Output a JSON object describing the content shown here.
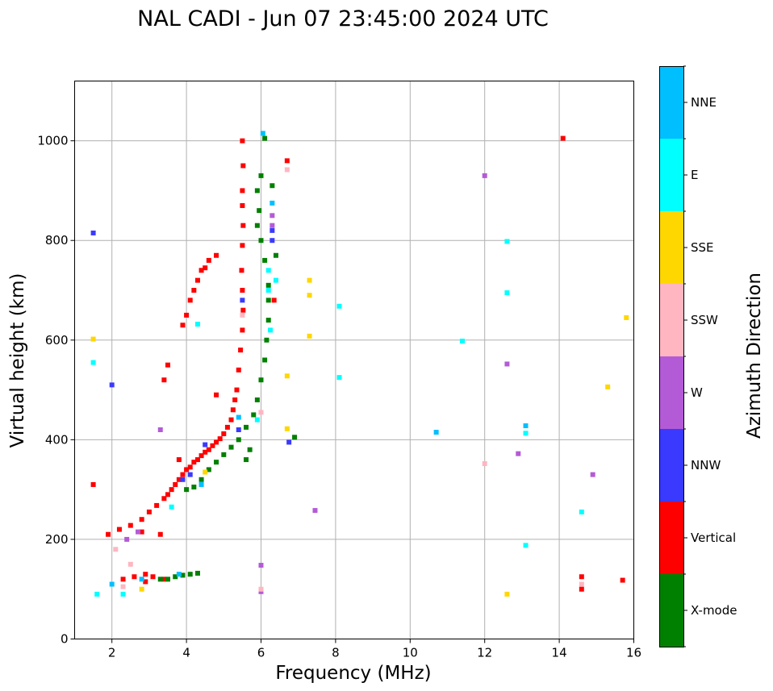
{
  "chart_data": {
    "type": "scatter",
    "title": "NAL CADI - Jun 07 23:45:00 2024 UTC",
    "xlabel": "Frequency (MHz)",
    "ylabel": "Virtual height (km)",
    "xlim": [
      1,
      16
    ],
    "ylim": [
      0,
      1120
    ],
    "xticks": [
      2,
      4,
      6,
      8,
      10,
      12,
      14,
      16
    ],
    "yticks": [
      0,
      200,
      400,
      600,
      800,
      1000
    ],
    "grid": true,
    "colorbar": {
      "label": "Azimuth Direction",
      "categories": [
        "X-mode",
        "Vertical",
        "NNW",
        "W",
        "SSW",
        "SSE",
        "E",
        "NNE"
      ],
      "colors": [
        "#008000",
        "#ff0000",
        "#3a3aff",
        "#b35bd6",
        "#ffb6c1",
        "#ffd700",
        "#00ffff",
        "#00bfff"
      ]
    },
    "series": [
      {
        "name": "Vertical",
        "points": [
          [
            1.5,
            310
          ],
          [
            1.9,
            210
          ],
          [
            2.2,
            220
          ],
          [
            2.5,
            228
          ],
          [
            2.8,
            240
          ],
          [
            3.0,
            255
          ],
          [
            3.2,
            268
          ],
          [
            3.4,
            282
          ],
          [
            3.5,
            290
          ],
          [
            3.6,
            300
          ],
          [
            3.7,
            310
          ],
          [
            3.8,
            320
          ],
          [
            3.9,
            330
          ],
          [
            4.0,
            340
          ],
          [
            4.1,
            345
          ],
          [
            4.2,
            355
          ],
          [
            4.3,
            360
          ],
          [
            4.4,
            368
          ],
          [
            4.5,
            375
          ],
          [
            4.6,
            380
          ],
          [
            4.7,
            388
          ],
          [
            4.8,
            395
          ],
          [
            4.9,
            402
          ],
          [
            5.0,
            412
          ],
          [
            5.1,
            425
          ],
          [
            5.2,
            440
          ],
          [
            5.25,
            460
          ],
          [
            5.3,
            480
          ],
          [
            5.35,
            500
          ],
          [
            5.4,
            540
          ],
          [
            5.45,
            580
          ],
          [
            5.5,
            620
          ],
          [
            5.52,
            660
          ],
          [
            5.5,
            700
          ],
          [
            5.48,
            740
          ],
          [
            5.5,
            790
          ],
          [
            5.52,
            830
          ],
          [
            5.5,
            870
          ],
          [
            5.5,
            900
          ],
          [
            5.52,
            950
          ],
          [
            5.5,
            1000
          ],
          [
            3.9,
            630
          ],
          [
            4.0,
            650
          ],
          [
            4.1,
            680
          ],
          [
            4.2,
            700
          ],
          [
            4.3,
            720
          ],
          [
            4.4,
            740
          ],
          [
            4.5,
            745
          ],
          [
            4.6,
            760
          ],
          [
            4.8,
            770
          ],
          [
            3.4,
            520
          ],
          [
            3.5,
            550
          ],
          [
            4.8,
            490
          ],
          [
            3.8,
            360
          ],
          [
            3.3,
            210
          ],
          [
            2.8,
            215
          ],
          [
            6.7,
            960
          ],
          [
            6.35,
            680
          ],
          [
            14.1,
            1005
          ],
          [
            15.7,
            118
          ],
          [
            14.6,
            100
          ],
          [
            14.6,
            125
          ],
          [
            2.3,
            120
          ],
          [
            2.6,
            125
          ],
          [
            2.9,
            130
          ],
          [
            3.1,
            125
          ],
          [
            3.4,
            120
          ],
          [
            2.9,
            115
          ]
        ]
      },
      {
        "name": "X-mode",
        "points": [
          [
            3.3,
            120
          ],
          [
            3.5,
            120
          ],
          [
            3.7,
            125
          ],
          [
            3.9,
            128
          ],
          [
            4.1,
            130
          ],
          [
            4.3,
            132
          ],
          [
            4.0,
            300
          ],
          [
            4.2,
            305
          ],
          [
            4.4,
            320
          ],
          [
            4.6,
            340
          ],
          [
            4.8,
            355
          ],
          [
            5.0,
            370
          ],
          [
            5.2,
            385
          ],
          [
            5.4,
            400
          ],
          [
            5.6,
            425
          ],
          [
            5.8,
            450
          ],
          [
            5.9,
            480
          ],
          [
            6.0,
            520
          ],
          [
            6.1,
            560
          ],
          [
            6.15,
            600
          ],
          [
            6.2,
            640
          ],
          [
            6.2,
            680
          ],
          [
            6.2,
            710
          ],
          [
            6.1,
            760
          ],
          [
            6.0,
            800
          ],
          [
            5.9,
            830
          ],
          [
            5.95,
            860
          ],
          [
            5.9,
            900
          ],
          [
            6.0,
            930
          ],
          [
            6.1,
            1005
          ],
          [
            6.4,
            770
          ],
          [
            6.3,
            910
          ],
          [
            6.9,
            405
          ],
          [
            5.6,
            360
          ],
          [
            5.7,
            380
          ]
        ]
      },
      {
        "name": "NNW",
        "points": [
          [
            1.5,
            815
          ],
          [
            2.0,
            510
          ],
          [
            3.9,
            320
          ],
          [
            4.1,
            330
          ],
          [
            4.5,
            390
          ],
          [
            5.5,
            680
          ],
          [
            6.3,
            800
          ],
          [
            6.3,
            820
          ],
          [
            6.75,
            395
          ],
          [
            5.4,
            420
          ]
        ]
      },
      {
        "name": "W",
        "points": [
          [
            6.3,
            850
          ],
          [
            6.3,
            830
          ],
          [
            6.0,
            95
          ],
          [
            6.0,
            148
          ],
          [
            7.45,
            258
          ],
          [
            12.0,
            930
          ],
          [
            12.6,
            552
          ],
          [
            12.9,
            372
          ],
          [
            14.9,
            330
          ],
          [
            2.7,
            215
          ],
          [
            2.4,
            200
          ],
          [
            3.3,
            420
          ]
        ]
      },
      {
        "name": "SSW",
        "points": [
          [
            6.7,
            942
          ],
          [
            5.5,
            650
          ],
          [
            6.0,
            100
          ],
          [
            6.0,
            455
          ],
          [
            12.0,
            352
          ],
          [
            14.6,
            110
          ],
          [
            2.5,
            150
          ],
          [
            2.3,
            105
          ],
          [
            2.1,
            180
          ]
        ]
      },
      {
        "name": "SSE",
        "points": [
          [
            1.5,
            602
          ],
          [
            6.7,
            528
          ],
          [
            6.7,
            422
          ],
          [
            7.3,
            720
          ],
          [
            7.3,
            690
          ],
          [
            7.3,
            608
          ],
          [
            12.6,
            90
          ],
          [
            15.3,
            506
          ],
          [
            15.8,
            645
          ],
          [
            2.8,
            100
          ],
          [
            4.5,
            335
          ]
        ]
      },
      {
        "name": "E",
        "points": [
          [
            1.5,
            555
          ],
          [
            4.3,
            632
          ],
          [
            6.2,
            740
          ],
          [
            6.2,
            700
          ],
          [
            6.25,
            620
          ],
          [
            5.9,
            440
          ],
          [
            11.4,
            598
          ],
          [
            12.6,
            798
          ],
          [
            12.6,
            695
          ],
          [
            13.1,
            188
          ],
          [
            13.1,
            413
          ],
          [
            14.6,
            255
          ],
          [
            8.1,
            668
          ],
          [
            8.1,
            525
          ],
          [
            1.6,
            90
          ],
          [
            2.3,
            90
          ],
          [
            3.6,
            265
          ],
          [
            6.4,
            720
          ]
        ]
      },
      {
        "name": "NNE",
        "points": [
          [
            6.05,
            1015
          ],
          [
            6.3,
            875
          ],
          [
            10.7,
            415
          ],
          [
            13.1,
            428
          ],
          [
            2.0,
            110
          ],
          [
            2.8,
            120
          ],
          [
            3.8,
            130
          ],
          [
            5.4,
            445
          ],
          [
            4.4,
            310
          ]
        ]
      }
    ]
  }
}
